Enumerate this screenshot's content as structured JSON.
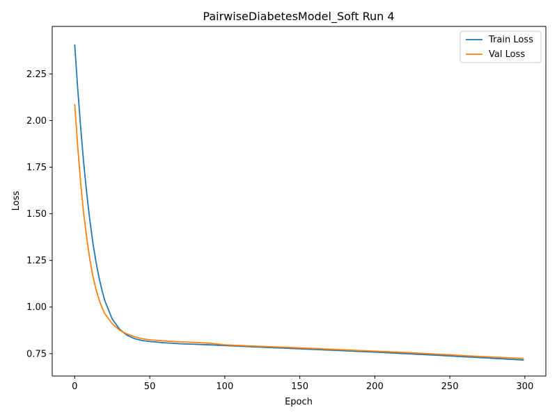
{
  "chart_data": {
    "type": "line",
    "title": "PairwiseDiabetesModel_Soft Run 4",
    "xlabel": "Epoch",
    "ylabel": "Loss",
    "xlim": [
      -15,
      314
    ],
    "ylim": [
      0.63,
      2.505
    ],
    "xticks": [
      0,
      50,
      100,
      150,
      200,
      250,
      300
    ],
    "xtick_labels": [
      "0",
      "50",
      "100",
      "150",
      "200",
      "250",
      "300"
    ],
    "yticks": [
      0.75,
      1.0,
      1.25,
      1.5,
      1.75,
      2.0,
      2.25
    ],
    "ytick_labels": [
      "0.75",
      "1.00",
      "1.25",
      "1.50",
      "1.75",
      "2.00",
      "2.25"
    ],
    "grid": false,
    "legend_position": "top-right",
    "series": [
      {
        "name": "Train Loss",
        "color": "#1f77b4",
        "x": [
          0,
          2,
          4,
          6,
          8,
          10,
          12,
          14,
          16,
          18,
          20,
          25,
          30,
          35,
          40,
          45,
          50,
          60,
          70,
          80,
          90,
          100,
          120,
          140,
          160,
          180,
          200,
          220,
          240,
          260,
          280,
          299
        ],
        "y": [
          2.405,
          2.17,
          1.96,
          1.77,
          1.61,
          1.47,
          1.35,
          1.25,
          1.165,
          1.095,
          1.035,
          0.935,
          0.88,
          0.848,
          0.83,
          0.82,
          0.815,
          0.808,
          0.803,
          0.8,
          0.797,
          0.793,
          0.786,
          0.779,
          0.772,
          0.765,
          0.758,
          0.75,
          0.742,
          0.733,
          0.724,
          0.716
        ]
      },
      {
        "name": "Val Loss",
        "color": "#ff7f0e",
        "x": [
          0,
          2,
          4,
          6,
          8,
          10,
          12,
          14,
          16,
          18,
          20,
          25,
          30,
          35,
          40,
          45,
          50,
          60,
          70,
          80,
          90,
          100,
          120,
          140,
          160,
          180,
          200,
          220,
          240,
          260,
          280,
          299
        ],
        "y": [
          2.085,
          1.86,
          1.66,
          1.5,
          1.37,
          1.26,
          1.17,
          1.1,
          1.045,
          1.0,
          0.965,
          0.91,
          0.875,
          0.855,
          0.84,
          0.83,
          0.824,
          0.818,
          0.813,
          0.81,
          0.806,
          0.797,
          0.79,
          0.784,
          0.777,
          0.77,
          0.763,
          0.756,
          0.748,
          0.739,
          0.731,
          0.724
        ]
      }
    ]
  }
}
